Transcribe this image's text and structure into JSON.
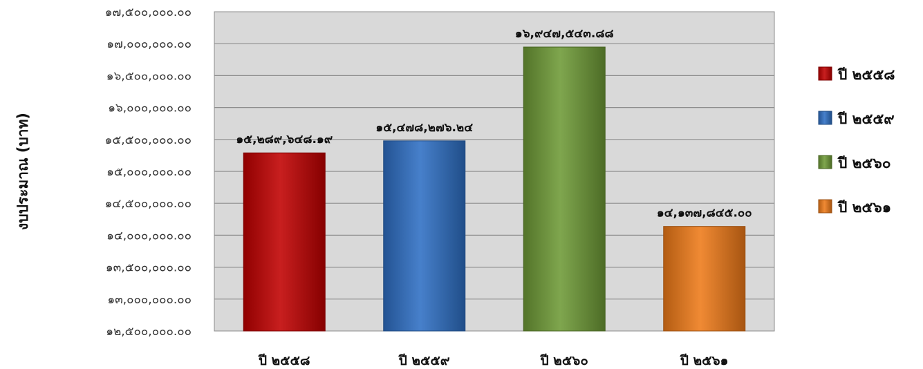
{
  "chart_data": {
    "type": "bar",
    "title": "",
    "xlabel": "",
    "ylabel": "งบประมาณ (บาท)",
    "categories": [
      "ปี ๒๕๕๘",
      "ปี ๒๕๕๙",
      "ปี ๒๕๖๐",
      "ปี ๒๕๖๑"
    ],
    "values": [
      15289648.19,
      15478276.24,
      16947543.88,
      14137845.0
    ],
    "data_labels": [
      "๑๕,๒๘๙,๖๔๘.๑๙",
      "๑๕,๔๗๘,๒๗๖.๒๔",
      "๑๖,๙๔๗,๕๔๓.๘๘",
      "๑๔,๑๓๗,๘๔๕.๐๐"
    ],
    "ylim": [
      12500000,
      17500000
    ],
    "y_ticks": [
      12500000,
      13000000,
      13500000,
      14000000,
      14500000,
      15000000,
      15500000,
      16000000,
      16500000,
      17000000,
      17500000
    ],
    "y_tick_labels": [
      "๑๒,๕๐๐,๐๐๐.๐๐",
      "๑๓,๐๐๐,๐๐๐.๐๐",
      "๑๓,๕๐๐,๐๐๐.๐๐",
      "๑๔,๐๐๐,๐๐๐.๐๐",
      "๑๔,๕๐๐,๐๐๐.๐๐",
      "๑๕,๐๐๐,๐๐๐.๐๐",
      "๑๕,๕๐๐,๐๐๐.๐๐",
      "๑๖,๐๐๐,๐๐๐.๐๐",
      "๑๖,๕๐๐,๐๐๐.๐๐",
      "๑๗,๐๐๐,๐๐๐.๐๐",
      "๑๗,๕๐๐,๐๐๐.๐๐"
    ],
    "colors": [
      "#c00000",
      "#2e6fc4",
      "#6e9a36",
      "#ee7a18"
    ],
    "plot_background": "#d9d9d9",
    "grid": true,
    "legend": {
      "position": "right",
      "entries": [
        "ปี ๒๕๕๘",
        "ปี ๒๕๕๙",
        "ปี ๒๕๖๐",
        "ปี ๒๕๖๑"
      ]
    }
  }
}
